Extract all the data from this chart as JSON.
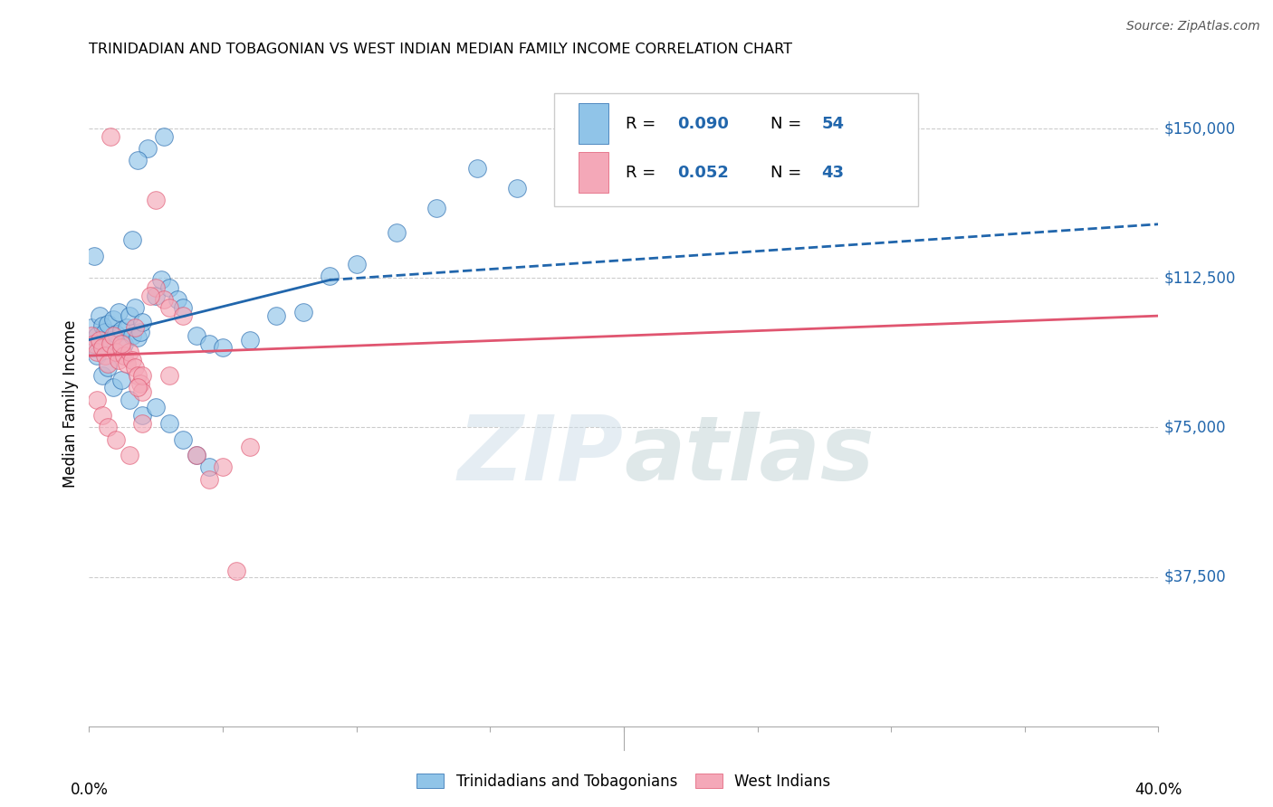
{
  "title": "TRINIDADIAN AND TOBAGONIAN VS WEST INDIAN MEDIAN FAMILY INCOME CORRELATION CHART",
  "source": "Source: ZipAtlas.com",
  "ylabel": "Median Family Income",
  "y_ticks": [
    37500,
    75000,
    112500,
    150000
  ],
  "y_tick_labels": [
    "$37,500",
    "$75,000",
    "$112,500",
    "$150,000"
  ],
  "xmin": 0.0,
  "xmax": 0.4,
  "ymin": 0,
  "ymax": 162000,
  "watermark_zip": "ZIP",
  "watermark_atlas": "atlas",
  "legend_r1": "0.090",
  "legend_n1": "54",
  "legend_r2": "0.052",
  "legend_n2": "43",
  "legend_label1": "Trinidadians and Tobagonians",
  "legend_label2": "West Indians",
  "blue_color": "#90c4e8",
  "pink_color": "#f4a8b8",
  "blue_line_color": "#2166ac",
  "pink_line_color": "#e05570",
  "blue_scatter": [
    [
      0.001,
      100000
    ],
    [
      0.002,
      95000
    ],
    [
      0.003,
      98000
    ],
    [
      0.004,
      103000
    ],
    [
      0.005,
      100500
    ],
    [
      0.006,
      99000
    ],
    [
      0.007,
      101000
    ],
    [
      0.008,
      97000
    ],
    [
      0.009,
      102000
    ],
    [
      0.01,
      98500
    ],
    [
      0.011,
      104000
    ],
    [
      0.012,
      99500
    ],
    [
      0.013,
      96000
    ],
    [
      0.014,
      100000
    ],
    [
      0.015,
      103000
    ],
    [
      0.016,
      98000
    ],
    [
      0.017,
      105000
    ],
    [
      0.018,
      97500
    ],
    [
      0.019,
      99000
    ],
    [
      0.02,
      101500
    ],
    [
      0.025,
      108000
    ],
    [
      0.027,
      112000
    ],
    [
      0.03,
      110000
    ],
    [
      0.033,
      107000
    ],
    [
      0.035,
      105000
    ],
    [
      0.04,
      98000
    ],
    [
      0.045,
      96000
    ],
    [
      0.05,
      95000
    ],
    [
      0.06,
      97000
    ],
    [
      0.07,
      103000
    ],
    [
      0.08,
      104000
    ],
    [
      0.09,
      113000
    ],
    [
      0.1,
      116000
    ],
    [
      0.115,
      124000
    ],
    [
      0.13,
      130000
    ],
    [
      0.145,
      140000
    ],
    [
      0.16,
      135000
    ],
    [
      0.003,
      93000
    ],
    [
      0.005,
      88000
    ],
    [
      0.007,
      90000
    ],
    [
      0.009,
      85000
    ],
    [
      0.012,
      87000
    ],
    [
      0.015,
      82000
    ],
    [
      0.02,
      78000
    ],
    [
      0.025,
      80000
    ],
    [
      0.03,
      76000
    ],
    [
      0.035,
      72000
    ],
    [
      0.04,
      68000
    ],
    [
      0.045,
      65000
    ],
    [
      0.022,
      145000
    ],
    [
      0.028,
      148000
    ],
    [
      0.018,
      142000
    ],
    [
      0.002,
      118000
    ],
    [
      0.016,
      122000
    ]
  ],
  "pink_scatter": [
    [
      0.001,
      98000
    ],
    [
      0.002,
      96000
    ],
    [
      0.003,
      94000
    ],
    [
      0.004,
      97000
    ],
    [
      0.005,
      95000
    ],
    [
      0.006,
      93000
    ],
    [
      0.007,
      91000
    ],
    [
      0.008,
      96000
    ],
    [
      0.009,
      98000
    ],
    [
      0.01,
      94000
    ],
    [
      0.011,
      92000
    ],
    [
      0.012,
      95000
    ],
    [
      0.013,
      93000
    ],
    [
      0.014,
      91000
    ],
    [
      0.015,
      94000
    ],
    [
      0.016,
      92000
    ],
    [
      0.017,
      90000
    ],
    [
      0.018,
      88000
    ],
    [
      0.019,
      86000
    ],
    [
      0.02,
      84000
    ],
    [
      0.025,
      110000
    ],
    [
      0.028,
      107000
    ],
    [
      0.03,
      105000
    ],
    [
      0.035,
      103000
    ],
    [
      0.04,
      68000
    ],
    [
      0.045,
      62000
    ],
    [
      0.05,
      65000
    ],
    [
      0.055,
      39000
    ],
    [
      0.06,
      70000
    ],
    [
      0.003,
      82000
    ],
    [
      0.005,
      78000
    ],
    [
      0.007,
      75000
    ],
    [
      0.01,
      72000
    ],
    [
      0.015,
      68000
    ],
    [
      0.02,
      76000
    ],
    [
      0.008,
      148000
    ],
    [
      0.025,
      132000
    ],
    [
      0.023,
      108000
    ],
    [
      0.017,
      100000
    ],
    [
      0.012,
      96000
    ],
    [
      0.02,
      88000
    ],
    [
      0.03,
      88000
    ],
    [
      0.018,
      85000
    ]
  ],
  "blue_trendline_solid": [
    [
      0.0,
      97000
    ],
    [
      0.09,
      112000
    ]
  ],
  "blue_trendline_dash": [
    [
      0.09,
      112000
    ],
    [
      0.4,
      126000
    ]
  ],
  "pink_trendline": [
    [
      0.0,
      93000
    ],
    [
      0.4,
      103000
    ]
  ]
}
